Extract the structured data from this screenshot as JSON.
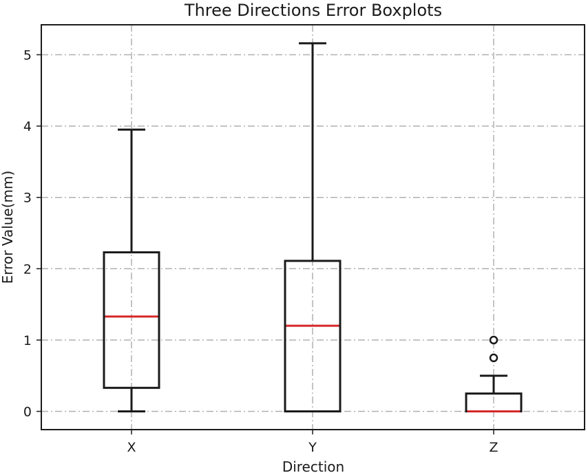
{
  "chart_data": {
    "type": "box",
    "title": "Three Directions Error Boxplots",
    "xlabel": "Direction",
    "ylabel": "Error Value(mm)",
    "categories": [
      "X",
      "Y",
      "Z"
    ],
    "ylim": [
      -0.25,
      5.42
    ],
    "yticks": [
      0,
      1,
      2,
      3,
      4,
      5
    ],
    "grid": true,
    "colors": {
      "box": "#1a1a1a",
      "median": "#d62728",
      "grid": "#b0b0b0"
    },
    "boxes": [
      {
        "category": "X",
        "whisker_low": 0.0,
        "q1": 0.33,
        "median": 1.33,
        "q3": 2.23,
        "whisker_high": 3.95,
        "outliers": []
      },
      {
        "category": "Y",
        "whisker_low": 0.0,
        "q1": 0.0,
        "median": 1.2,
        "q3": 2.11,
        "whisker_high": 5.16,
        "outliers": []
      },
      {
        "category": "Z",
        "whisker_low": 0.0,
        "q1": 0.0,
        "median": 0.0,
        "q3": 0.25,
        "whisker_high": 0.5,
        "outliers": [
          0.75,
          1.0
        ]
      }
    ]
  }
}
